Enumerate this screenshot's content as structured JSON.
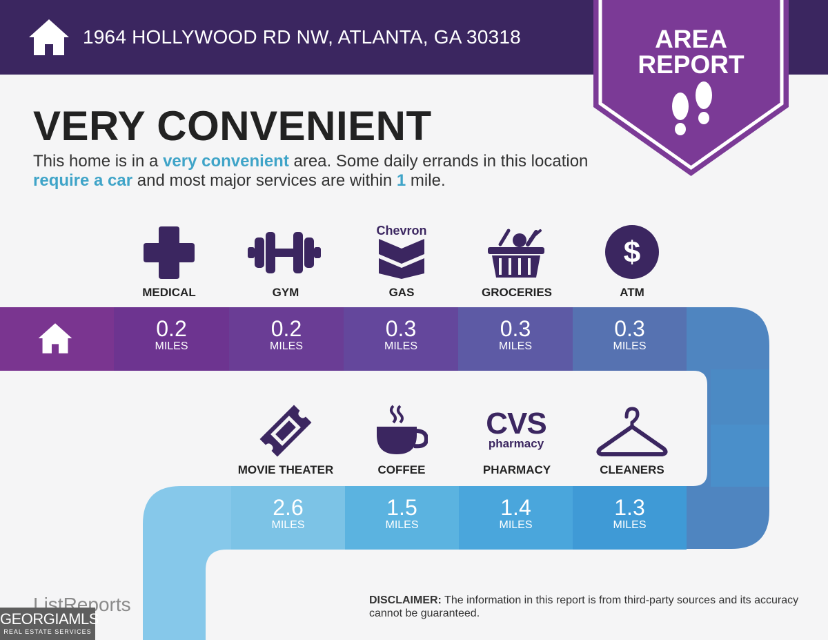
{
  "header": {
    "address": "1964 HOLLYWOOD RD NW, ATLANTA, GA 30318",
    "badge_line1": "AREA",
    "badge_line2": "REPORT"
  },
  "summary": {
    "headline": "VERY CONVENIENT",
    "part1": "This home is in a ",
    "hl1": "very convenient",
    "part2": " area. Some daily errands in this location ",
    "hl2": "require a car",
    "part3": " and most major services are within ",
    "hl3": "1",
    "part4": " mile."
  },
  "row1": [
    {
      "label": "MEDICAL",
      "value": "0.2",
      "unit": "MILES",
      "icon": "medical-cross-icon"
    },
    {
      "label": "GYM",
      "value": "0.2",
      "unit": "MILES",
      "icon": "dumbbell-icon"
    },
    {
      "label": "GAS",
      "value": "0.3",
      "unit": "MILES",
      "icon": "chevron-logo-icon",
      "logo_text": "Chevron"
    },
    {
      "label": "GROCERIES",
      "value": "0.3",
      "unit": "MILES",
      "icon": "grocery-basket-icon"
    },
    {
      "label": "ATM",
      "value": "0.3",
      "unit": "MILES",
      "icon": "dollar-icon"
    }
  ],
  "row2": [
    {
      "label": "MOVIE THEATER",
      "value": "2.6",
      "unit": "MILES",
      "icon": "ticket-icon"
    },
    {
      "label": "COFFEE",
      "value": "1.5",
      "unit": "MILES",
      "icon": "coffee-cup-icon"
    },
    {
      "label": "PHARMACY",
      "value": "1.4",
      "unit": "MILES",
      "icon": "cvs-logo-icon",
      "logo_text": "CVS",
      "logo_sub": "pharmacy"
    },
    {
      "label": "CLEANERS",
      "value": "1.3",
      "unit": "MILES",
      "icon": "hanger-icon"
    }
  ],
  "footer": {
    "brand": "ListReports",
    "mls_main": "GEORGIAMLS",
    "mls_sub": "REAL ESTATE SERVICES",
    "disclaimer_label": "DISCLAIMER:",
    "disclaimer_text": " The information in this report is from third-party sources and its accuracy cannot be guaranteed."
  },
  "colors": {
    "header_bg": "#3b2660",
    "badge": "#7b3a96",
    "highlight": "#3fa4c8",
    "row1_cells": [
      "#6d3490",
      "#6a3d95",
      "#64479c",
      "#5d5aa5",
      "#5672b1",
      "#5182ba"
    ],
    "row2_cells": [
      "#7cc3e6",
      "#5bb3e0",
      "#4aa6dc",
      "#3f9ad6",
      "#4191cf"
    ]
  }
}
